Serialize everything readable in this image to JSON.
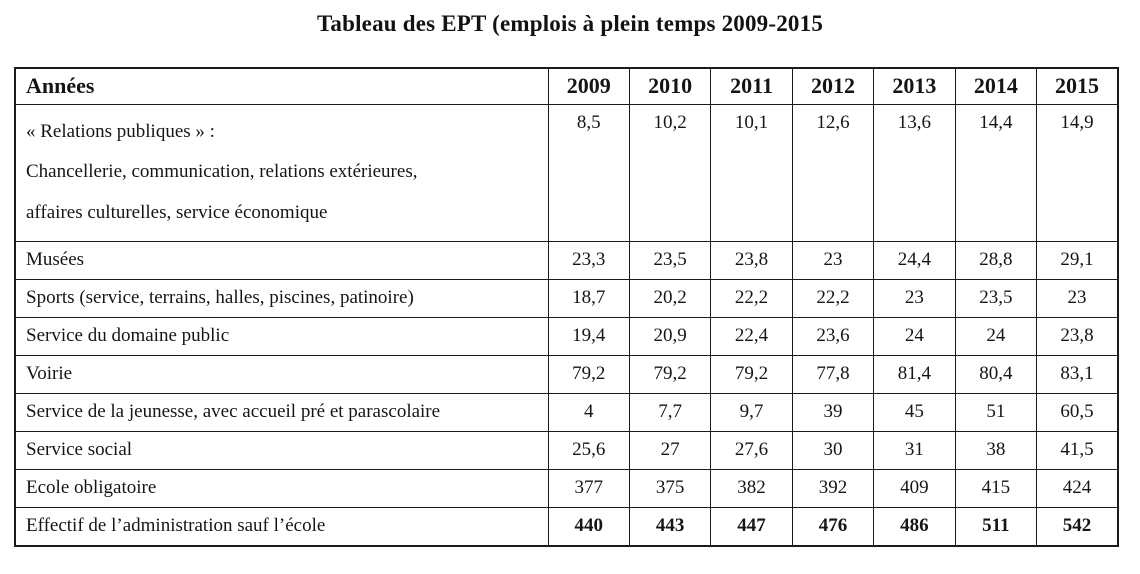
{
  "title": "Tableau des EPT (emplois à plein temps 2009-2015",
  "table": {
    "header_label": "Années",
    "years": [
      "2009",
      "2010",
      "2011",
      "2012",
      "2013",
      "2014",
      "2015"
    ],
    "rows": [
      {
        "label_lines": [
          "« Relations publiques » :",
          "Chancellerie, communication, relations extérieures,",
          "affaires culturelles, service économique"
        ],
        "values": [
          "8,5",
          "10,2",
          "10,1",
          "12,6",
          "13,6",
          "14,4",
          "14,9"
        ],
        "emphasis": false
      },
      {
        "label_lines": [
          "Musées"
        ],
        "values": [
          "23,3",
          "23,5",
          "23,8",
          "23",
          "24,4",
          "28,8",
          "29,1"
        ],
        "emphasis": false
      },
      {
        "label_lines": [
          "Sports (service, terrains, halles, piscines, patinoire)"
        ],
        "values": [
          "18,7",
          "20,2",
          "22,2",
          "22,2",
          "23",
          "23,5",
          "23"
        ],
        "emphasis": false
      },
      {
        "label_lines": [
          "Service du domaine public"
        ],
        "values": [
          "19,4",
          "20,9",
          "22,4",
          "23,6",
          "24",
          "24",
          "23,8"
        ],
        "emphasis": false
      },
      {
        "label_lines": [
          "Voirie"
        ],
        "values": [
          "79,2",
          "79,2",
          "79,2",
          "77,8",
          "81,4",
          "80,4",
          "83,1"
        ],
        "emphasis": false
      },
      {
        "label_lines": [
          "Service de la jeunesse, avec accueil pré et parascolaire"
        ],
        "values": [
          "4",
          "7,7",
          "9,7",
          "39",
          "45",
          "51",
          "60,5"
        ],
        "emphasis": false
      },
      {
        "label_lines": [
          "Service social"
        ],
        "values": [
          "25,6",
          "27",
          "27,6",
          "30",
          "31",
          "38",
          "41,5"
        ],
        "emphasis": false
      },
      {
        "label_lines": [
          "Ecole obligatoire"
        ],
        "values": [
          "377",
          "375",
          "382",
          "392",
          "409",
          "415",
          "424"
        ],
        "emphasis": false
      },
      {
        "label_lines": [
          "Effectif de l’administration sauf l’école"
        ],
        "values": [
          "440",
          "443",
          "447",
          "476",
          "486",
          "511",
          "542"
        ],
        "emphasis": true
      }
    ]
  }
}
